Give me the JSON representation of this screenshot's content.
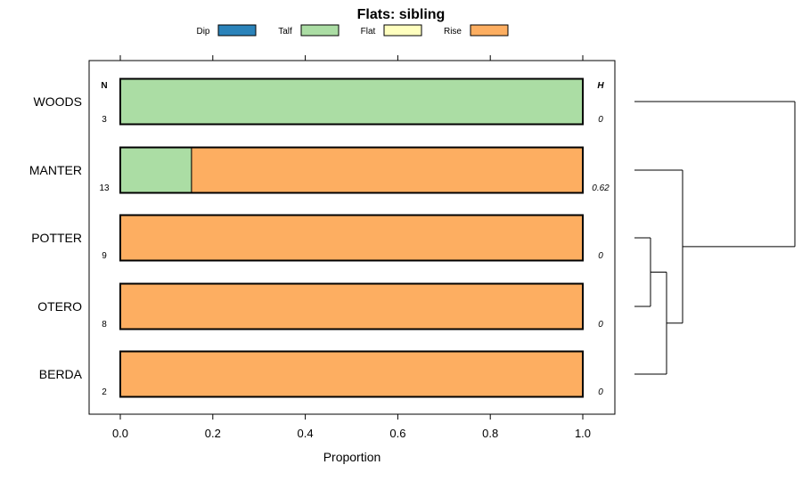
{
  "chart_data": {
    "type": "bar",
    "orientation": "horizontal",
    "stacked": true,
    "title": "Flats: sibling",
    "xlabel": "Proportion",
    "xlim": [
      0,
      1
    ],
    "xticks": [
      "0.0",
      "0.2",
      "0.4",
      "0.6",
      "0.8",
      "1.0"
    ],
    "xtick_values": [
      0,
      0.2,
      0.4,
      0.6,
      0.8,
      1.0
    ],
    "n_header": "N",
    "h_header": "H",
    "legend": [
      {
        "name": "Dip",
        "color": "#2b83ba"
      },
      {
        "name": "Talf",
        "color": "#abdda4"
      },
      {
        "name": "Flat",
        "color": "#ffffbf"
      },
      {
        "name": "Rise",
        "color": "#fdae61"
      }
    ],
    "categories": [
      "WOODS",
      "MANTER",
      "POTTER",
      "OTERO",
      "BERDA"
    ],
    "n": [
      "3",
      "13",
      "9",
      "8",
      "2"
    ],
    "h": [
      "0",
      "0.62",
      "0",
      "0",
      "0"
    ],
    "series": [
      {
        "name": "Dip",
        "values": [
          0,
          0,
          0,
          0,
          0
        ]
      },
      {
        "name": "Talf",
        "values": [
          1.0,
          0.154,
          0,
          0,
          0
        ]
      },
      {
        "name": "Flat",
        "values": [
          0,
          0,
          0,
          0,
          0
        ]
      },
      {
        "name": "Rise",
        "values": [
          0,
          0.846,
          1.0,
          1.0,
          1.0
        ]
      }
    ],
    "dendrogram": {
      "merges": [
        {
          "left": "POTTER",
          "right": "OTERO",
          "height": 0.1
        },
        {
          "left": "cluster-1",
          "right": "BERDA",
          "height": 0.2
        },
        {
          "left": "MANTER",
          "right": "cluster-2",
          "height": 0.3
        },
        {
          "left": "WOODS",
          "right": "cluster-3",
          "height": 1.0
        }
      ]
    }
  }
}
